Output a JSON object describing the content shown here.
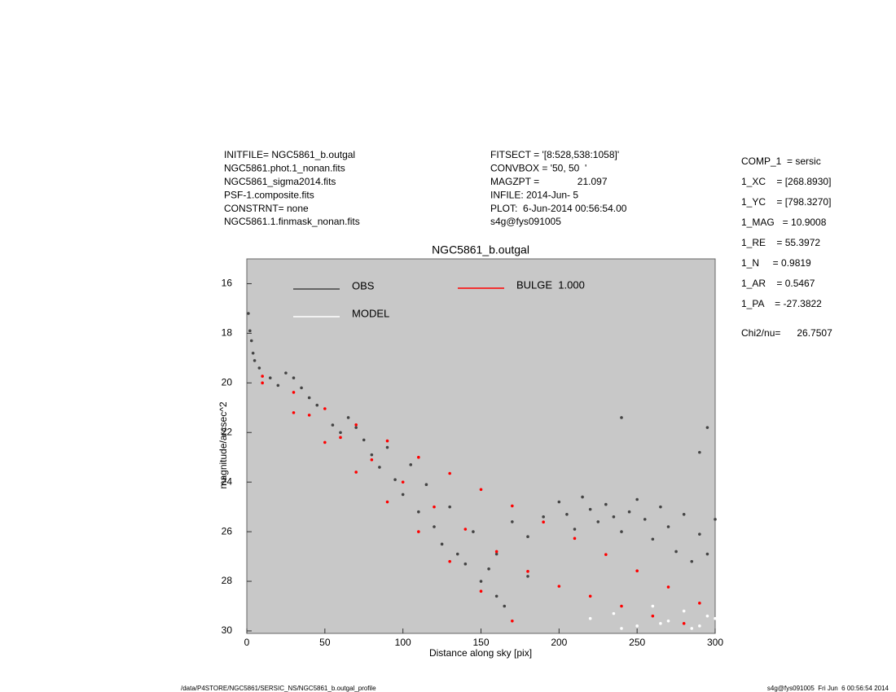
{
  "header": {
    "left": [
      "INITFILE= NGC5861_b.outgal",
      "NGC5861.phot.1_nonan.fits",
      "NGC5861_sigma2014.fits",
      "PSF-1.composite.fits",
      "CONSTRNT= none",
      "NGC5861.1.finmask_nonan.fits"
    ],
    "middle": [
      "FITSECT = '[8:528,538:1058]'",
      "CONVBOX = '50, 50  '",
      "MAGZPT =              21.097",
      "INFILE: 2014-Jun- 5",
      "PLOT:  6-Jun-2014 00:56:54.00",
      "s4g@fys091005"
    ],
    "right": [
      "COMP_1  = sersic",
      "1_XC    = [268.8930]",
      "1_YC    = [798.3270]",
      "1_MAG   = 10.9008",
      "1_RE    = 55.3972",
      "1_N     = 0.9819",
      "1_AR    = 0.5467",
      "1_PA    = -27.3822",
      "Chi2/nu=      26.7507"
    ]
  },
  "footer": {
    "left": "/data/P4STORE/NGC5861/SERSIC_NS/NGC5861_b.outgal_profile",
    "right": "s4g@fys091005  Fri Jun  6 00:56:54 2014"
  },
  "chart_data": {
    "type": "scatter",
    "title": "NGC5861_b.outgal",
    "x_label": "Distance along sky [pix]",
    "y_label": "magnitude/arcsec^2",
    "xlim": [
      0,
      300
    ],
    "xticks": [
      0,
      50,
      100,
      150,
      200,
      250,
      300
    ],
    "ylim": [
      15,
      30.1
    ],
    "yticks": [
      16,
      18,
      20,
      22,
      24,
      26,
      28,
      30
    ],
    "y_inverted": true,
    "background": "#c8c8c8",
    "series": [
      {
        "name": "OBS",
        "color": "#444444",
        "x": [
          1,
          2,
          3,
          4,
          5,
          8,
          15,
          20,
          25,
          30,
          35,
          40,
          45,
          55,
          60,
          65,
          70,
          75,
          80,
          85,
          90,
          95,
          100,
          105,
          110,
          115,
          120,
          125,
          130,
          135,
          140,
          145,
          150,
          155,
          160,
          165,
          170,
          180,
          190,
          200,
          205,
          210,
          215,
          220,
          225,
          230,
          235,
          240,
          245,
          250,
          255,
          260,
          265,
          270,
          275,
          280,
          285,
          290,
          295,
          300,
          240,
          290,
          295,
          160,
          180
        ],
        "y": [
          17.2,
          17.9,
          18.3,
          18.8,
          19.1,
          19.4,
          19.8,
          20.1,
          19.6,
          19.8,
          20.2,
          20.6,
          20.9,
          21.7,
          22.0,
          21.4,
          21.8,
          22.3,
          22.9,
          23.4,
          22.6,
          23.9,
          24.5,
          23.3,
          25.2,
          24.1,
          25.8,
          26.5,
          25.0,
          26.9,
          27.3,
          26.0,
          28.0,
          27.5,
          28.6,
          29.0,
          25.6,
          26.2,
          25.4,
          24.8,
          25.3,
          25.9,
          24.6,
          25.1,
          25.6,
          24.9,
          25.4,
          26.0,
          25.2,
          24.7,
          25.5,
          26.3,
          25.0,
          25.8,
          26.8,
          25.3,
          27.2,
          26.1,
          26.9,
          25.5,
          21.4,
          22.8,
          21.8,
          26.9,
          27.8
        ]
      },
      {
        "name": "BULGE  1.000",
        "color": "#ff0000",
        "x": [
          10,
          30,
          50,
          70,
          90,
          110,
          130,
          150,
          170,
          190,
          210,
          230,
          250,
          270,
          290,
          10,
          30,
          50,
          70,
          90,
          110,
          130,
          150,
          170,
          40,
          60,
          80,
          100,
          120,
          140,
          160,
          180,
          200,
          220,
          240,
          260,
          280
        ],
        "y": [
          19.73,
          20.38,
          21.04,
          21.69,
          22.34,
          23.0,
          23.65,
          24.3,
          24.96,
          25.61,
          26.27,
          26.92,
          27.58,
          28.23,
          28.88,
          20.0,
          21.2,
          22.4,
          23.6,
          24.8,
          26.0,
          27.2,
          28.4,
          29.6,
          21.3,
          22.2,
          23.1,
          24.0,
          25.0,
          25.9,
          26.8,
          27.6,
          28.2,
          28.6,
          29.0,
          29.4,
          29.7
        ]
      },
      {
        "name": "MODEL",
        "color": "#ffffff",
        "x": [
          220,
          235,
          250,
          260,
          270,
          280,
          290,
          295,
          240,
          265,
          285,
          300
        ],
        "y": [
          29.5,
          29.3,
          29.8,
          29.0,
          29.6,
          29.2,
          29.8,
          29.4,
          29.9,
          29.7,
          29.9,
          29.5
        ]
      }
    ]
  }
}
